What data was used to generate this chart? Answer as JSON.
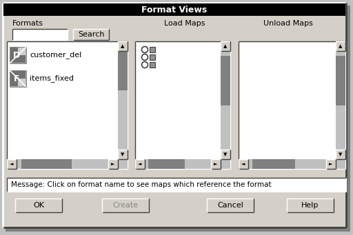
{
  "title": "Format Views",
  "title_bg": "#000000",
  "title_fg": "#ffffff",
  "bg_color": "#c0c0c0",
  "dialog_bg": "#d4d0c8",
  "white": "#ffffff",
  "gray_scroll": "#808080",
  "formats_label": "Formats",
  "search_btn": "Search",
  "load_maps_label": "Load Maps",
  "unload_maps_label": "Unload Maps",
  "message": "Message: Click on format name to see maps which reference the format",
  "buttons": [
    "OK",
    "Create",
    "Cancel",
    "Help"
  ],
  "list_items": [
    "customer_del",
    "items_fixed"
  ],
  "figsize": [
    5.12,
    3.41
  ],
  "dpi": 100
}
